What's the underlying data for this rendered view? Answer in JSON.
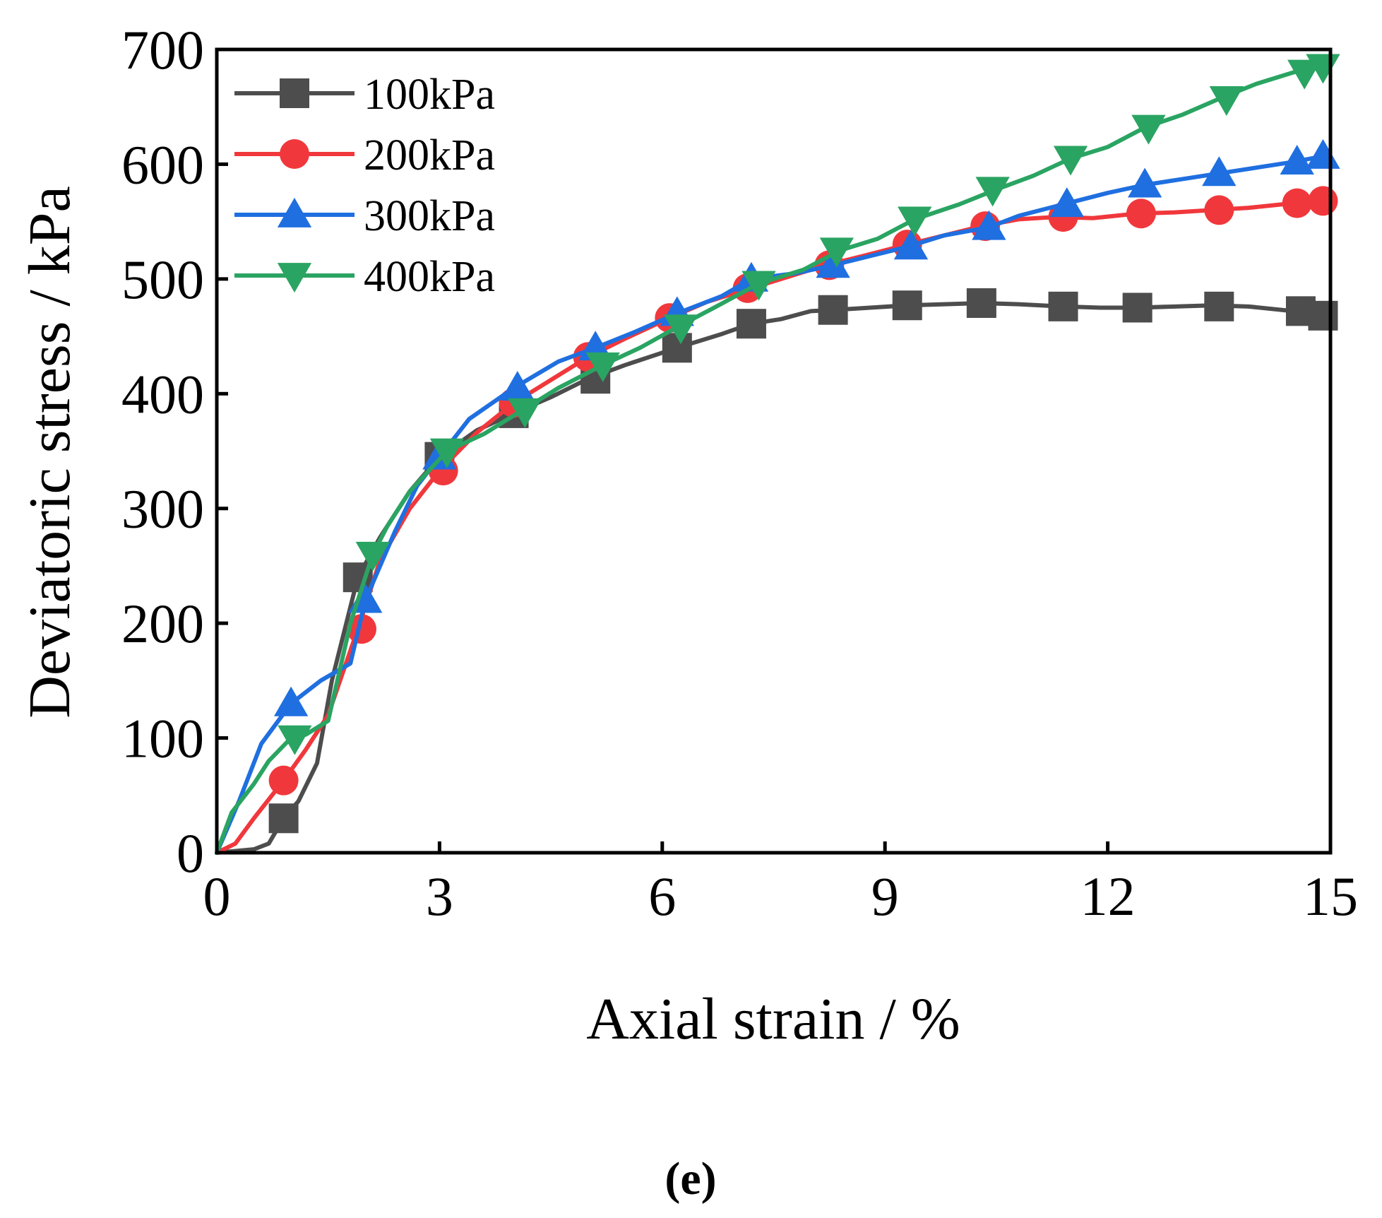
{
  "chart_data": {
    "type": "line",
    "title": "",
    "xlabel": "Axial strain / %",
    "ylabel": "Deviatoric stress / kPa",
    "xlim": [
      0,
      15
    ],
    "ylim": [
      0,
      700
    ],
    "xticks": [
      "0",
      "3",
      "6",
      "9",
      "12",
      "15"
    ],
    "yticks": [
      "0",
      "100",
      "200",
      "300",
      "400",
      "500",
      "600",
      "700"
    ],
    "legend_position": "top-left",
    "panel_label": "(e)",
    "series": [
      {
        "name": "100kPa",
        "color": "#4d4d4d",
        "marker": "square",
        "x": [
          0,
          0.5,
          0.7,
          0.9,
          1.1,
          1.35,
          1.55,
          1.9,
          2.2,
          2.6,
          3.0,
          3.5,
          4.0,
          4.5,
          5.0,
          5.5,
          6.2,
          6.8,
          7.2,
          7.6,
          8.0,
          8.3,
          8.8,
          9.3,
          9.8,
          10.3,
          10.8,
          11.4,
          11.9,
          12.4,
          12.9,
          13.4,
          13.9,
          14.5,
          14.9
        ],
        "y": [
          0,
          3,
          8,
          30,
          45,
          78,
          150,
          240,
          275,
          315,
          345,
          368,
          383,
          397,
          413,
          425,
          440,
          452,
          461,
          465,
          472,
          473,
          475,
          477,
          478,
          479,
          478,
          476,
          475,
          475,
          476,
          477,
          476,
          472,
          468
        ],
        "marker_x": [
          0.9,
          1.9,
          3.0,
          4.0,
          5.1,
          6.2,
          7.2,
          8.3,
          9.3,
          10.3,
          11.4,
          12.4,
          13.5,
          14.6,
          14.9
        ],
        "marker_y": [
          30,
          240,
          345,
          383,
          413,
          440,
          461,
          473,
          477,
          479,
          476,
          475,
          476,
          472,
          468
        ]
      },
      {
        "name": "200kPa",
        "color": "#f0383c",
        "marker": "circle",
        "x": [
          0,
          0.25,
          0.5,
          0.9,
          1.2,
          1.5,
          1.9,
          2.2,
          2.6,
          3.0,
          3.5,
          4.0,
          4.5,
          5.0,
          5.5,
          6.1,
          6.6,
          7.2,
          7.7,
          8.2,
          8.7,
          9.3,
          9.8,
          10.3,
          10.8,
          11.3,
          11.8,
          12.4,
          12.9,
          13.4,
          13.9,
          14.5,
          14.9
        ],
        "y": [
          0,
          8,
          30,
          63,
          90,
          120,
          195,
          255,
          300,
          333,
          366,
          392,
          412,
          432,
          448,
          466,
          480,
          492,
          502,
          512,
          520,
          530,
          538,
          546,
          552,
          554,
          553,
          557,
          558,
          560,
          562,
          566,
          568
        ],
        "marker_x": [
          0.9,
          1.95,
          3.05,
          4.0,
          5.0,
          6.1,
          7.15,
          8.25,
          9.3,
          10.35,
          11.4,
          12.45,
          13.5,
          14.55,
          14.9
        ],
        "marker_y": [
          63,
          195,
          333,
          392,
          432,
          466,
          492,
          512,
          530,
          546,
          554,
          557,
          560,
          566,
          568
        ]
      },
      {
        "name": "300kPa",
        "color": "#1f6fe0",
        "marker": "triangle-up",
        "x": [
          0,
          0.3,
          0.6,
          1.0,
          1.4,
          1.8,
          2.0,
          2.4,
          2.7,
          3.0,
          3.4,
          4.0,
          4.6,
          5.1,
          5.6,
          6.2,
          6.8,
          7.2,
          7.8,
          8.3,
          8.8,
          9.3,
          9.8,
          10.4,
          10.8,
          11.4,
          12.0,
          12.5,
          13.0,
          13.5,
          14.0,
          14.5,
          14.9
        ],
        "y": [
          0,
          45,
          95,
          130,
          150,
          165,
          220,
          280,
          320,
          345,
          378,
          405,
          428,
          440,
          453,
          470,
          485,
          500,
          505,
          512,
          520,
          528,
          538,
          545,
          555,
          565,
          575,
          582,
          587,
          592,
          597,
          602,
          607
        ],
        "marker_x": [
          1.0,
          2.0,
          3.0,
          4.05,
          5.1,
          6.2,
          7.2,
          8.3,
          9.35,
          10.4,
          11.45,
          12.5,
          13.5,
          14.55,
          14.9
        ],
        "marker_y": [
          130,
          220,
          345,
          405,
          440,
          470,
          500,
          512,
          528,
          545,
          565,
          582,
          592,
          602,
          607
        ]
      },
      {
        "name": "400kPa",
        "color": "#2aa462",
        "marker": "triangle-down",
        "x": [
          0,
          0.2,
          0.5,
          0.7,
          1.0,
          1.2,
          1.5,
          1.8,
          2.1,
          2.3,
          2.6,
          3.1,
          3.6,
          4.1,
          4.6,
          5.2,
          5.7,
          6.2,
          6.7,
          7.3,
          7.9,
          8.4,
          8.9,
          9.4,
          10.0,
          10.5,
          11.0,
          11.5,
          12.0,
          12.5,
          13.0,
          13.5,
          14.0,
          14.5,
          14.9
        ],
        "y": [
          0,
          35,
          60,
          80,
          100,
          103,
          115,
          200,
          260,
          285,
          315,
          350,
          365,
          385,
          405,
          425,
          440,
          458,
          475,
          496,
          508,
          525,
          535,
          552,
          565,
          578,
          590,
          605,
          615,
          632,
          643,
          657,
          670,
          680,
          685
        ],
        "marker_x": [
          1.05,
          2.1,
          3.1,
          4.15,
          5.2,
          6.25,
          7.3,
          8.35,
          9.4,
          10.45,
          11.5,
          12.55,
          13.6,
          14.65,
          14.9
        ],
        "marker_y": [
          100,
          260,
          350,
          385,
          425,
          458,
          496,
          525,
          552,
          578,
          605,
          632,
          657,
          680,
          685
        ]
      }
    ]
  }
}
